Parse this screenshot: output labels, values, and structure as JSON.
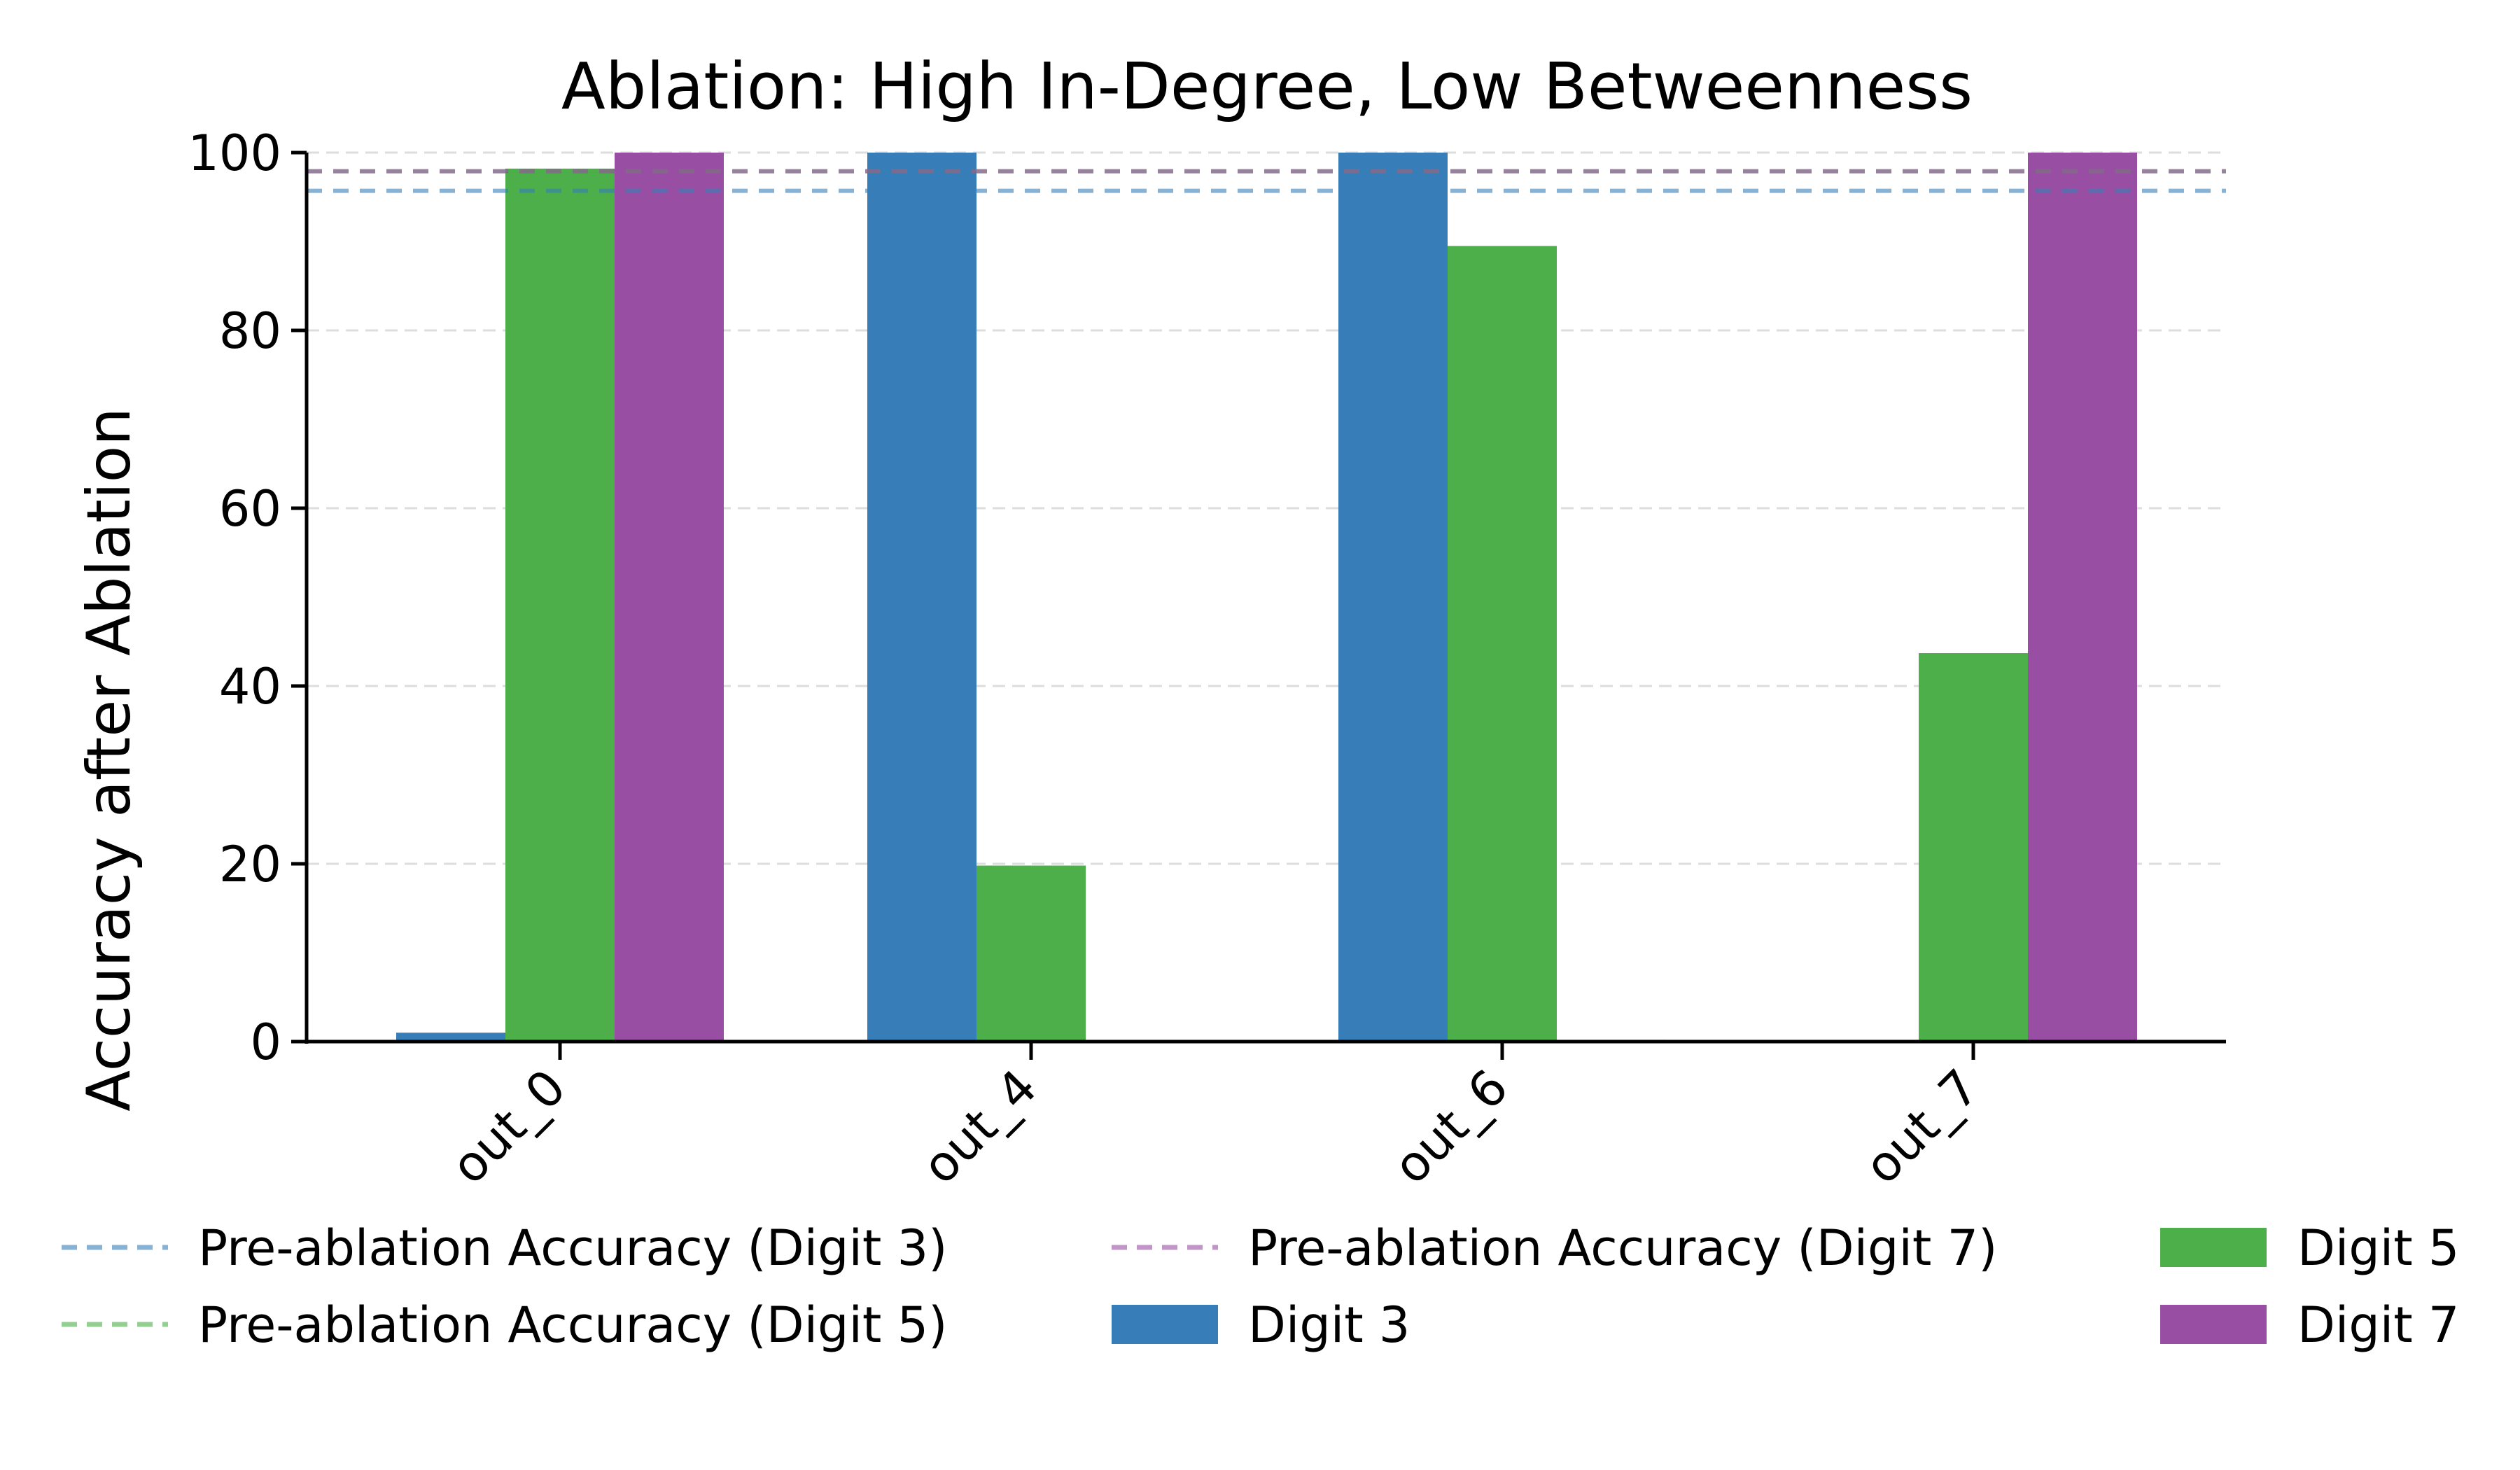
{
  "chart_data": {
    "type": "bar",
    "title": "Ablation: High In-Degree, Low Betweenness",
    "xlabel": "",
    "ylabel": "Accuracy after Ablation",
    "ylim": [
      0,
      100
    ],
    "yticks": [
      0,
      20,
      40,
      60,
      80,
      100
    ],
    "ytick_labels": [
      "0",
      "20",
      "40",
      "60",
      "80",
      "100"
    ],
    "grid": "y dashed",
    "categories": [
      "out_0",
      "out_4",
      "out_6",
      "out_7"
    ],
    "series": [
      {
        "name": "Digit 3",
        "color": "#377eb8",
        "values": [
          1.0,
          100,
          100,
          0
        ]
      },
      {
        "name": "Digit 5",
        "color": "#4daf4a",
        "values": [
          98.2,
          19.8,
          89.5,
          43.7
        ]
      },
      {
        "name": "Digit 7",
        "color": "#984ea3",
        "values": [
          100,
          0,
          0.2,
          100
        ]
      }
    ],
    "reference_lines": [
      {
        "name": "Pre-ablation Accuracy (Digit 3)",
        "color": "#377eb8",
        "value": 95.7
      },
      {
        "name": "Pre-ablation Accuracy (Digit 5)",
        "color": "#4daf4a",
        "value": 97.9
      },
      {
        "name": "Pre-ablation Accuracy (Digit 7)",
        "color": "#984ea3",
        "value": 97.9
      }
    ],
    "legend": {
      "placement": "bottom",
      "columns": 3,
      "entries": [
        {
          "label": "Pre-ablation Accuracy (Digit 3)",
          "kind": "line",
          "color": "#377eb8"
        },
        {
          "label": "Pre-ablation Accuracy (Digit 5)",
          "kind": "line",
          "color": "#4daf4a"
        },
        {
          "label": "Pre-ablation Accuracy (Digit 7)",
          "kind": "line",
          "color": "#984ea3"
        },
        {
          "label": "Digit 3",
          "kind": "patch",
          "color": "#377eb8"
        },
        {
          "label": "Digit 5",
          "kind": "patch",
          "color": "#4daf4a"
        },
        {
          "label": "Digit 7",
          "kind": "patch",
          "color": "#984ea3"
        }
      ]
    }
  }
}
